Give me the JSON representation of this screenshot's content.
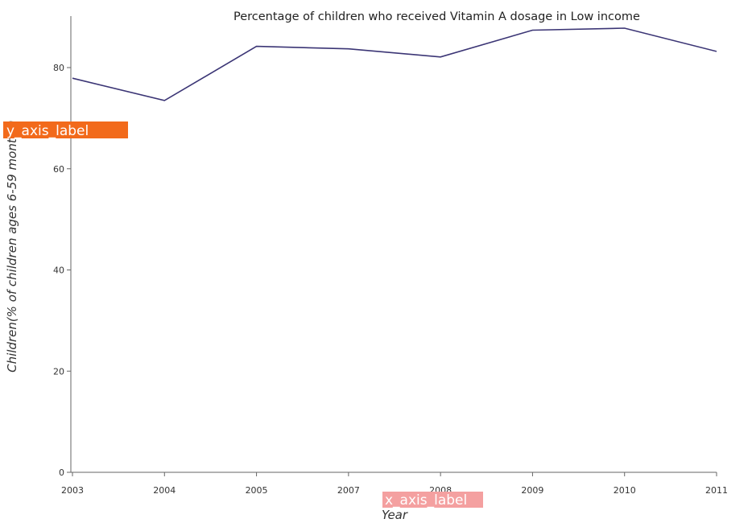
{
  "chart_data": {
    "type": "line",
    "title": "Percentage of children who received Vitamin A dosage in Low income",
    "xlabel": "Year",
    "ylabel": "Children(% of children ages 6-59 months)",
    "categories": [
      "2003",
      "2004",
      "2005",
      "2007",
      "2008",
      "2009",
      "2010",
      "2011"
    ],
    "values": [
      77.9,
      73.5,
      84.2,
      83.7,
      82.1,
      87.4,
      87.8,
      83.2
    ],
    "ylim": [
      0,
      88
    ],
    "yticks": [
      0,
      20,
      40,
      60,
      80
    ],
    "line_color": "#3b3575",
    "grid": false,
    "legend": "none"
  },
  "overlays": {
    "y_placeholder": "y_axis_label",
    "x_placeholder": "x_axis_label",
    "y_overlay_color": "#f26a1b",
    "x_overlay_color": "#f4a0a0"
  }
}
